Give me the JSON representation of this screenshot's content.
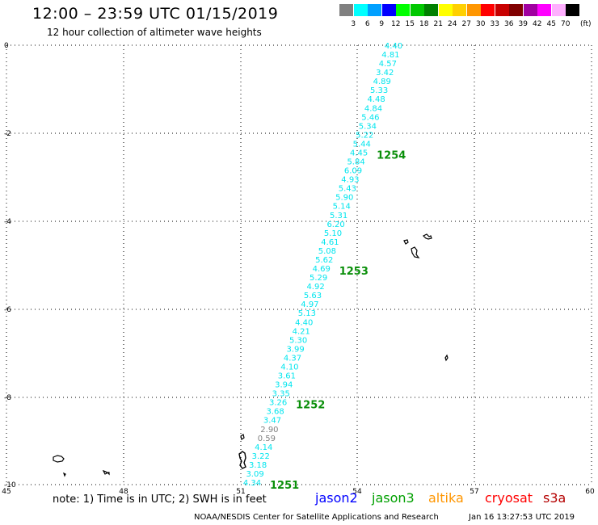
{
  "header": {
    "title": "12:00 – 23:59 UTC 01/15/2019",
    "subtitle": "12 hour collection of altimeter wave heights"
  },
  "legend": {
    "unit": "(ft)",
    "bins": [
      {
        "label": "3",
        "color": "#808080"
      },
      {
        "label": "6",
        "color": "#00ffff"
      },
      {
        "label": "9",
        "color": "#00a0ff"
      },
      {
        "label": "12",
        "color": "#0000ff"
      },
      {
        "label": "15",
        "color": "#00ff00"
      },
      {
        "label": "18",
        "color": "#00c800"
      },
      {
        "label": "21",
        "color": "#008000"
      },
      {
        "label": "24",
        "color": "#ffff00"
      },
      {
        "label": "27",
        "color": "#ffd000"
      },
      {
        "label": "30",
        "color": "#ff9600"
      },
      {
        "label": "33",
        "color": "#ff0000"
      },
      {
        "label": "36",
        "color": "#c80000"
      },
      {
        "label": "39",
        "color": "#800000"
      },
      {
        "label": "42",
        "color": "#a000a0"
      },
      {
        "label": "45",
        "color": "#ff00ff"
      },
      {
        "label": "70",
        "color": "#ffb0ff"
      },
      {
        "label": "",
        "color": "#000000"
      }
    ]
  },
  "map": {
    "lat_ticks": [
      "0",
      "-2",
      "-4",
      "-6",
      "-8",
      "-10"
    ],
    "lon_ticks": [
      "45",
      "48",
      "51",
      "54",
      "57",
      "60"
    ],
    "measurements": [
      {
        "value": "4.40",
        "color": "#00e5ee"
      },
      {
        "value": "4.81",
        "color": "#00e5ee"
      },
      {
        "value": "4.57",
        "color": "#00e5ee"
      },
      {
        "value": "3.42",
        "color": "#00e5ee"
      },
      {
        "value": "4.89",
        "color": "#00e5ee"
      },
      {
        "value": "5.33",
        "color": "#00e5ee"
      },
      {
        "value": "4.48",
        "color": "#00e5ee"
      },
      {
        "value": "4.84",
        "color": "#00e5ee"
      },
      {
        "value": "5.46",
        "color": "#00e5ee"
      },
      {
        "value": "5.34",
        "color": "#00e5ee"
      },
      {
        "value": "5.22",
        "color": "#00e5ee"
      },
      {
        "value": "5.44",
        "color": "#00e5ee"
      },
      {
        "value": "4.45",
        "color": "#00e5ee"
      },
      {
        "value": "5.84",
        "color": "#00e5ee"
      },
      {
        "value": "6.09",
        "color": "#00e5ee"
      },
      {
        "value": "4.93",
        "color": "#00e5ee"
      },
      {
        "value": "5.43",
        "color": "#00e5ee"
      },
      {
        "value": "5.90",
        "color": "#00e5ee"
      },
      {
        "value": "5.14",
        "color": "#00e5ee"
      },
      {
        "value": "5.31",
        "color": "#00e5ee"
      },
      {
        "value": "6.20",
        "color": "#00e5ee"
      },
      {
        "value": "5.10",
        "color": "#00e5ee"
      },
      {
        "value": "4.61",
        "color": "#00e5ee"
      },
      {
        "value": "5.08",
        "color": "#00e5ee"
      },
      {
        "value": "5.62",
        "color": "#00e5ee"
      },
      {
        "value": "4.69",
        "color": "#00e5ee"
      },
      {
        "value": "5.29",
        "color": "#00e5ee"
      },
      {
        "value": "4.92",
        "color": "#00e5ee"
      },
      {
        "value": "5.63",
        "color": "#00e5ee"
      },
      {
        "value": "4.97",
        "color": "#00e5ee"
      },
      {
        "value": "5.13",
        "color": "#00e5ee"
      },
      {
        "value": "4.40",
        "color": "#00e5ee"
      },
      {
        "value": "4.21",
        "color": "#00e5ee"
      },
      {
        "value": "5.30",
        "color": "#00e5ee"
      },
      {
        "value": "3.99",
        "color": "#00e5ee"
      },
      {
        "value": "4.37",
        "color": "#00e5ee"
      },
      {
        "value": "4.10",
        "color": "#00e5ee"
      },
      {
        "value": "3.61",
        "color": "#00e5ee"
      },
      {
        "value": "3.94",
        "color": "#00e5ee"
      },
      {
        "value": "3.35",
        "color": "#00e5ee"
      },
      {
        "value": "3.26",
        "color": "#00e5ee"
      },
      {
        "value": "3.68",
        "color": "#00e5ee"
      },
      {
        "value": "3.47",
        "color": "#00e5ee"
      },
      {
        "value": "2.90",
        "color": "#808080"
      },
      {
        "value": "0.59",
        "color": "#808080"
      },
      {
        "value": "4.14",
        "color": "#00e5ee"
      },
      {
        "value": "3.22",
        "color": "#00e5ee"
      },
      {
        "value": "3.18",
        "color": "#00e5ee"
      },
      {
        "value": "3.09",
        "color": "#00e5ee"
      },
      {
        "value": "4.34",
        "color": "#00e5ee"
      }
    ],
    "pass_labels": [
      {
        "label": "1254",
        "after": "4.45"
      },
      {
        "label": "1253",
        "after": "4.69"
      },
      {
        "label": "1252",
        "after": "3.26"
      },
      {
        "label": "1251",
        "after": "4.34"
      }
    ]
  },
  "note": "note:  1) Time is in UTC;  2) SWH is in feet",
  "satellites": [
    {
      "name": "jason2",
      "color": "#0000ff"
    },
    {
      "name": "jason3",
      "color": "#00a000"
    },
    {
      "name": "altika",
      "color": "#ff9600"
    },
    {
      "name": "cryosat",
      "color": "#ff0000"
    },
    {
      "name": "s3a",
      "color": "#b40000"
    }
  ],
  "footer": {
    "source": "NOAA/NESDIS Center for Satellite Applications and Research",
    "timestamp": "Jan 16 13:27:53 UTC 2019"
  }
}
